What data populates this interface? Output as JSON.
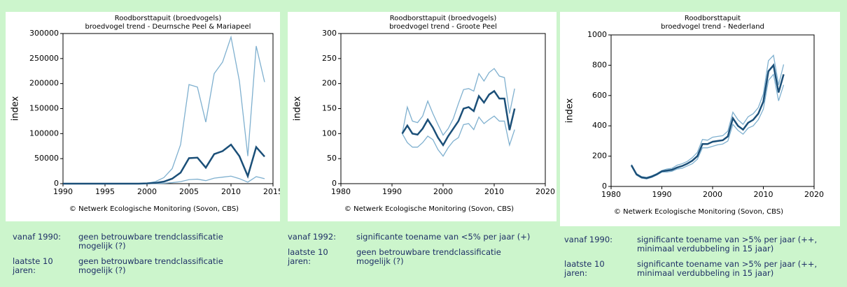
{
  "chart_data": [
    {
      "type": "line",
      "title": "Roodborsttapuit (broedvogels)",
      "subtitle": "broedvogel trend - Deurnsche Peel & Mariapeel",
      "ylabel": "index",
      "credit": "© Netwerk Ecologische Monitoring (Sovon, CBS)",
      "x": [
        1990,
        1991,
        1992,
        1993,
        1994,
        1995,
        1996,
        1997,
        1998,
        1999,
        2000,
        2001,
        2002,
        2003,
        2004,
        2005,
        2006,
        2007,
        2008,
        2009,
        2010,
        2011,
        2012,
        2013,
        2014
      ],
      "series": [
        {
          "color": "#7fb0cf",
          "values": [
            0,
            0,
            0,
            0,
            0,
            0,
            0,
            0,
            0,
            0,
            1000,
            4000,
            12000,
            30000,
            78000,
            198000,
            193000,
            123000,
            220000,
            243000,
            293000,
            205000,
            55000,
            275000,
            203000
          ]
        },
        {
          "color": "#7fb0cf",
          "values": [
            0,
            0,
            0,
            0,
            0,
            0,
            0,
            0,
            0,
            0,
            100,
            300,
            800,
            2000,
            4000,
            8000,
            9000,
            6000,
            11000,
            13000,
            15000,
            10000,
            3000,
            14000,
            10000
          ]
        },
        {
          "color": "#1b4f78",
          "values": [
            0,
            0,
            0,
            0,
            0,
            0,
            0,
            0,
            0,
            0,
            500,
            1500,
            4000,
            10000,
            22000,
            51000,
            52000,
            32000,
            59000,
            65000,
            78000,
            55000,
            15000,
            73000,
            54000
          ]
        }
      ],
      "xlim": [
        1990,
        2015
      ],
      "xticks": [
        1990,
        1995,
        2000,
        2005,
        2010,
        2015
      ],
      "ylim": [
        0,
        300000
      ],
      "yticks": [
        0,
        50000,
        100000,
        150000,
        200000,
        250000,
        300000
      ]
    },
    {
      "type": "line",
      "title": "Roodborsttapuit (broedvogels)",
      "subtitle": "broedvogel trend - Groote Peel",
      "ylabel": "index",
      "credit": "© Netwerk Ecologische Monitoring (Sovon, CBS)",
      "x": [
        1992,
        1993,
        1994,
        1995,
        1996,
        1997,
        1998,
        1999,
        2000,
        2001,
        2002,
        2003,
        2004,
        2005,
        2006,
        2007,
        2008,
        2009,
        2010,
        2011,
        2012,
        2013,
        2014
      ],
      "series": [
        {
          "color": "#7fb0cf",
          "values": [
            100,
            153,
            125,
            122,
            135,
            165,
            140,
            118,
            97,
            110,
            130,
            160,
            188,
            190,
            185,
            220,
            205,
            222,
            230,
            215,
            212,
            140,
            190
          ]
        },
        {
          "color": "#7fb0cf",
          "values": [
            100,
            82,
            73,
            73,
            82,
            95,
            88,
            68,
            55,
            72,
            85,
            92,
            118,
            120,
            108,
            133,
            120,
            128,
            135,
            125,
            125,
            77,
            108
          ]
        },
        {
          "color": "#1b4f78",
          "values": [
            100,
            116,
            100,
            98,
            110,
            128,
            112,
            92,
            77,
            95,
            110,
            125,
            150,
            153,
            145,
            175,
            162,
            178,
            185,
            170,
            170,
            107,
            150
          ]
        }
      ],
      "xlim": [
        1980,
        2020
      ],
      "xticks": [
        1980,
        1990,
        2000,
        2010,
        2020
      ],
      "ylim": [
        0,
        300
      ],
      "yticks": [
        0,
        50,
        100,
        150,
        200,
        250,
        300
      ]
    },
    {
      "type": "line",
      "title": "Roodborsttapuit",
      "subtitle": "broedvogel trend - Nederland",
      "ylabel": "index",
      "credit": "© Netwerk Ecologische Monitoring (Sovon, CBS)",
      "x": [
        1984,
        1985,
        1986,
        1987,
        1988,
        1989,
        1990,
        1991,
        1992,
        1993,
        1994,
        1995,
        1996,
        1997,
        1998,
        1999,
        2000,
        2001,
        2002,
        2003,
        2004,
        2005,
        2006,
        2007,
        2008,
        2009,
        2010,
        2011,
        2012,
        2013,
        2014
      ],
      "series": [
        {
          "color": "#7fb0cf",
          "values": [
            145,
            85,
            65,
            60,
            70,
            85,
            105,
            115,
            120,
            140,
            150,
            165,
            190,
            225,
            310,
            305,
            325,
            330,
            335,
            365,
            490,
            440,
            410,
            460,
            480,
            520,
            610,
            830,
            865,
            670,
            805
          ]
        },
        {
          "color": "#7fb0cf",
          "values": [
            135,
            75,
            55,
            50,
            60,
            75,
            95,
            95,
            100,
            115,
            120,
            135,
            150,
            180,
            255,
            255,
            265,
            275,
            280,
            300,
            410,
            370,
            345,
            385,
            400,
            440,
            510,
            700,
            740,
            565,
            670
          ]
        },
        {
          "color": "#1b4f78",
          "values": [
            140,
            80,
            60,
            55,
            65,
            80,
            100,
            105,
            110,
            125,
            135,
            150,
            170,
            200,
            280,
            280,
            295,
            300,
            305,
            330,
            450,
            400,
            375,
            420,
            440,
            480,
            560,
            760,
            800,
            620,
            740
          ]
        }
      ],
      "xlim": [
        1980,
        2020
      ],
      "xticks": [
        1980,
        1990,
        2000,
        2010,
        2020
      ],
      "ylim": [
        0,
        1000
      ],
      "yticks": [
        0,
        200,
        400,
        600,
        800,
        1000
      ]
    }
  ],
  "notes": [
    [
      {
        "label": "vanaf 1990:",
        "text": "geen betrouwbare trendclassificatie mogelijk (?)"
      },
      {
        "label": "laatste 10 jaren:",
        "text": "geen betrouwbare trendclassificatie mogelijk (?)"
      }
    ],
    [
      {
        "label": "vanaf 1992:",
        "text": "significante toename van <5% per jaar (+)"
      },
      {
        "label": "laatste 10 jaren:",
        "text": "geen betrouwbare trendclassificatie mogelijk (?)"
      }
    ],
    [
      {
        "label": "vanaf 1990:",
        "text": "significante toename van >5% per jaar (++, minimaal verdubbeling in 15 jaar)"
      },
      {
        "label": "laatste 10 jaren:",
        "text": "significante toename van >5% per jaar (++, minimaal verdubbeling in 15 jaar)"
      }
    ]
  ]
}
